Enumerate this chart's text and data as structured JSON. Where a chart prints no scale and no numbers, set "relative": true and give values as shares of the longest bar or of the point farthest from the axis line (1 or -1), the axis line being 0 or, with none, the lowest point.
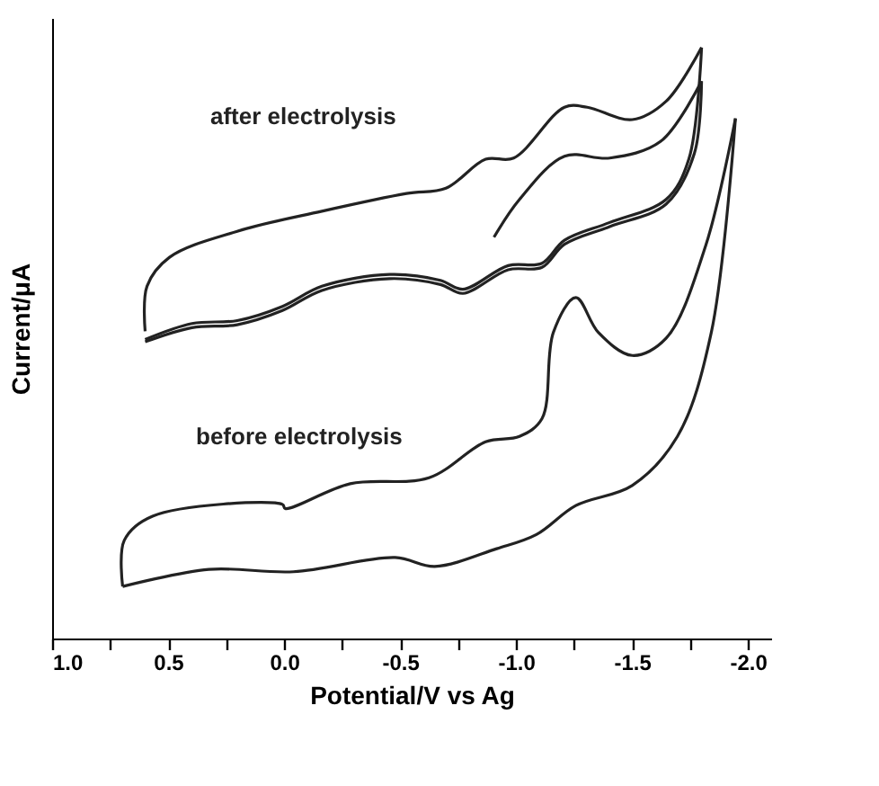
{
  "chart_data": {
    "type": "line",
    "relative": true,
    "xlabel": "Potential/V vs Ag",
    "ylabel": "Current/μA",
    "xlim": [
      1.0,
      -2.1
    ],
    "xticks": [
      {
        "value": 1.0,
        "label": "1.0"
      },
      {
        "value": 0.75,
        "label": null
      },
      {
        "value": 0.5,
        "label": "0.5"
      },
      {
        "value": 0.25,
        "label": null
      },
      {
        "value": 0.0,
        "label": "0.0"
      },
      {
        "value": -0.25,
        "label": null
      },
      {
        "value": -0.5,
        "label": "-0.5"
      },
      {
        "value": -0.75,
        "label": null
      },
      {
        "value": -1.0,
        "label": "-1.0"
      },
      {
        "value": -1.25,
        "label": null
      },
      {
        "value": -1.5,
        "label": "-1.5"
      },
      {
        "value": -1.75,
        "label": null
      },
      {
        "value": -2.0,
        "label": "-2.0"
      }
    ],
    "tick_labels": "x",
    "grid": false,
    "line_style": "solid",
    "series": [
      {
        "name": "after electrolysis",
        "color": "#222222",
        "x": [
          0.599,
          0.591,
          0.494,
          0.202,
          -0.163,
          -0.528,
          -0.698,
          -0.869,
          -0.99,
          -1.209,
          -1.307,
          -1.501,
          -1.647,
          -1.8
        ],
        "values": [
          0.52,
          0.596,
          0.645,
          0.689,
          0.723,
          0.753,
          0.762,
          0.811,
          0.813,
          0.899,
          0.899,
          0.878,
          0.909,
          1.0
        ]
      },
      {
        "color": "#222222",
        "x": [
          -1.8,
          -1.745,
          -1.647,
          -1.404,
          -1.209,
          -1.112,
          -0.966,
          -0.771,
          -0.674,
          -0.455,
          -0.163,
          0.007,
          0.202,
          0.397,
          0.599
        ],
        "values": [
          1.0,
          0.811,
          0.743,
          0.704,
          0.674,
          0.635,
          0.631,
          0.591,
          0.606,
          0.616,
          0.596,
          0.562,
          0.538,
          0.533,
          0.506
        ]
      },
      {
        "color": "#222222",
        "x": [
          -0.905,
          -1.015,
          -1.209,
          -1.404,
          -1.623,
          -1.8
        ],
        "values": [
          0.679,
          0.743,
          0.816,
          0.813,
          0.841,
          0.943
        ]
      },
      {
        "color": "#222222",
        "x": [
          -1.8,
          -1.769,
          -1.647,
          -1.404,
          -1.209,
          -1.112,
          -0.966,
          -0.771,
          -0.674,
          -0.455,
          -0.163,
          0.007,
          0.202,
          0.397,
          0.599
        ],
        "values": [
          0.943,
          0.821,
          0.735,
          0.697,
          0.667,
          0.628,
          0.624,
          0.584,
          0.599,
          0.609,
          0.589,
          0.555,
          0.531,
          0.526,
          0.502
        ]
      },
      {
        "name": "before electrolysis",
        "color": "#222222",
        "x": [
          0.696,
          0.689,
          0.567,
          0.007,
          -0.005,
          -0.285,
          -0.625,
          -0.869,
          -1.015,
          -1.112,
          -1.161,
          -1.258,
          -1.355,
          -1.501,
          -1.647,
          -1.818,
          -1.946
        ],
        "values": [
          0.088,
          0.166,
          0.207,
          0.227,
          0.22,
          0.262,
          0.272,
          0.333,
          0.342,
          0.372,
          0.518,
          0.577,
          0.518,
          0.479,
          0.508,
          0.665,
          0.88
        ]
      },
      {
        "color": "#222222",
        "x": [
          -1.946,
          -1.842,
          -1.696,
          -1.501,
          -1.258,
          -1.088,
          -0.917,
          -0.65,
          -0.479,
          -0.041,
          0.324,
          0.696
        ],
        "values": [
          0.88,
          0.518,
          0.342,
          0.259,
          0.225,
          0.176,
          0.152,
          0.122,
          0.137,
          0.113,
          0.117,
          0.088
        ]
      }
    ]
  }
}
